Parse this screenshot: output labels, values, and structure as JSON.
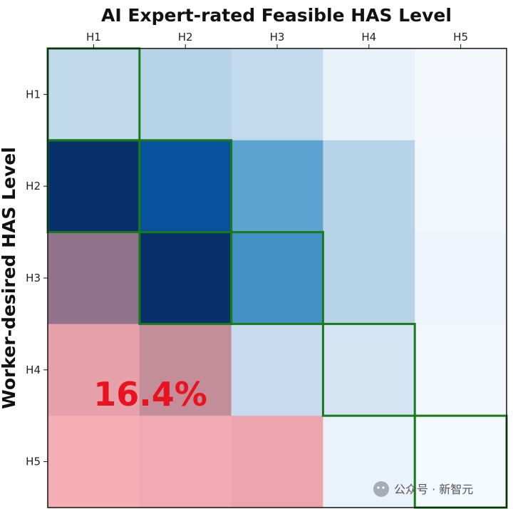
{
  "chart_data": {
    "type": "heatmap",
    "title": "AI Expert-rated Feasible HAS Level",
    "xlabel": "AI Expert-rated Feasible HAS Level",
    "ylabel": "Worker-desired HAS Level",
    "x_categories": [
      "H1",
      "H2",
      "H3",
      "H4",
      "H5"
    ],
    "y_categories": [
      "H1",
      "H2",
      "H3",
      "H4",
      "H5"
    ],
    "x_axis_position": "top",
    "grid": false,
    "cell_colors": [
      [
        "#c0d9ec",
        "#b6d3e8",
        "#c3d9ec",
        "#e9f2fb",
        "#f4f8fd"
      ],
      [
        "#08306b",
        "#08519c",
        "#5da5d0",
        "#b6d3e8",
        "#f2f7fd"
      ],
      [
        "#93728c",
        "#08306b",
        "#4292c6",
        "#b6d3e8",
        "#edf4fc"
      ],
      [
        "#e6a1aa",
        "#c48d9a",
        "#c6dcee",
        "#d4e4f2",
        "#f2f7fd"
      ],
      [
        "#f6aeb5",
        "#f2aab2",
        "#eca5ad",
        "#eaf2fb",
        "#f4f9fe"
      ]
    ],
    "highlighted_cells": [
      [
        0,
        0
      ],
      [
        1,
        1
      ],
      [
        2,
        2
      ],
      [
        3,
        3
      ],
      [
        4,
        4
      ],
      [
        1,
        0
      ],
      [
        2,
        1
      ]
    ],
    "highlight_color": "#1a7a1a",
    "annotation": {
      "text": "16.4%",
      "color": "#e8131f"
    }
  },
  "watermark": {
    "text": "公众号 · 新智元"
  }
}
